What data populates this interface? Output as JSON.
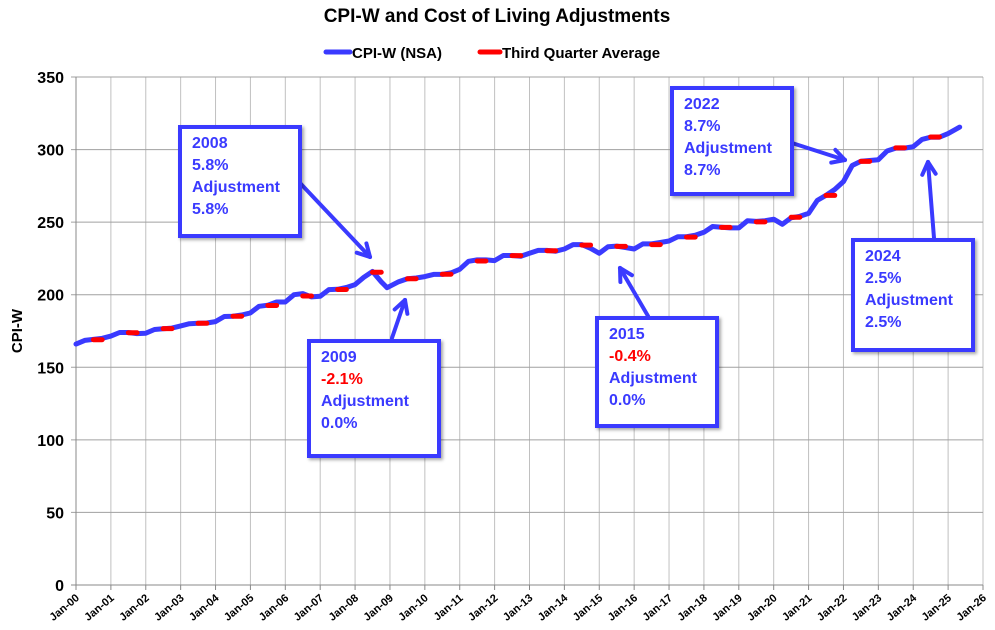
{
  "chart_data": {
    "type": "line",
    "title": "CPI-W and Cost of Living Adjustments",
    "ylabel": "CPI-W",
    "xlabel": "",
    "ylim": [
      0,
      350
    ],
    "yticks": [
      0,
      50,
      100,
      150,
      200,
      250,
      300,
      350
    ],
    "xlim": [
      "2000-01",
      "2026-01"
    ],
    "xtick_labels": [
      "Jan-00",
      "Jan-01",
      "Jan-02",
      "Jan-03",
      "Jan-04",
      "Jan-05",
      "Jan-06",
      "Jan-07",
      "Jan-08",
      "Jan-09",
      "Jan-10",
      "Jan-11",
      "Jan-12",
      "Jan-13",
      "Jan-14",
      "Jan-15",
      "Jan-16",
      "Jan-17",
      "Jan-18",
      "Jan-19",
      "Jan-20",
      "Jan-21",
      "Jan-22",
      "Jan-23",
      "Jan-24",
      "Jan-25",
      "Jan-26"
    ],
    "grid": true,
    "legend_placement": "top",
    "series": [
      {
        "name": "CPI-W (NSA)",
        "color": "#3a3aff",
        "x": [
          "2000-01",
          "2000-04",
          "2000-07",
          "2000-10",
          "2001-01",
          "2001-04",
          "2001-07",
          "2001-10",
          "2002-01",
          "2002-04",
          "2002-07",
          "2002-10",
          "2003-01",
          "2003-04",
          "2003-07",
          "2003-10",
          "2004-01",
          "2004-04",
          "2004-07",
          "2004-10",
          "2005-01",
          "2005-04",
          "2005-07",
          "2005-10",
          "2006-01",
          "2006-04",
          "2006-07",
          "2006-10",
          "2007-01",
          "2007-04",
          "2007-07",
          "2007-10",
          "2008-01",
          "2008-04",
          "2008-07",
          "2008-10",
          "2008-12",
          "2009-04",
          "2009-07",
          "2009-10",
          "2010-01",
          "2010-04",
          "2010-07",
          "2010-10",
          "2011-01",
          "2011-04",
          "2011-07",
          "2011-10",
          "2012-01",
          "2012-04",
          "2012-07",
          "2012-10",
          "2013-01",
          "2013-04",
          "2013-07",
          "2013-10",
          "2014-01",
          "2014-04",
          "2014-07",
          "2014-10",
          "2015-01",
          "2015-04",
          "2015-07",
          "2015-10",
          "2016-01",
          "2016-04",
          "2016-07",
          "2016-10",
          "2017-01",
          "2017-04",
          "2017-07",
          "2017-10",
          "2018-01",
          "2018-04",
          "2018-07",
          "2018-10",
          "2019-01",
          "2019-04",
          "2019-07",
          "2019-10",
          "2020-01",
          "2020-04",
          "2020-07",
          "2020-10",
          "2021-01",
          "2021-04",
          "2021-07",
          "2021-10",
          "2022-01",
          "2022-04",
          "2022-07",
          "2022-10",
          "2023-01",
          "2023-04",
          "2023-07",
          "2023-10",
          "2024-01",
          "2024-04",
          "2024-07",
          "2024-10",
          "2025-01",
          "2025-05"
        ],
        "values": [
          166,
          168.5,
          169.2,
          170,
          171.5,
          174,
          174,
          173.2,
          173.5,
          176,
          176.6,
          177,
          178.5,
          180,
          180.3,
          180.5,
          181.5,
          185,
          185.2,
          186,
          187.5,
          192,
          192.8,
          195,
          195,
          200,
          200.8,
          198.5,
          199,
          203.5,
          203.7,
          205,
          207,
          212,
          216,
          209,
          204.8,
          209,
          211,
          211.5,
          212.5,
          214,
          214,
          215,
          217.5,
          223,
          224,
          224,
          223.5,
          227,
          227,
          226.5,
          228.5,
          230.5,
          230.5,
          230,
          231.5,
          234.5,
          234.5,
          232,
          228.5,
          233,
          233.5,
          232.5,
          231.5,
          235,
          235,
          236,
          237,
          240,
          240,
          241,
          243,
          247,
          246.5,
          246,
          246,
          251,
          250.5,
          251,
          252,
          248.5,
          253,
          254,
          256,
          265,
          268.5,
          272.5,
          278,
          289,
          292,
          292.5,
          293,
          299,
          301,
          301,
          302,
          307,
          308.5,
          308.5,
          311,
          315.5
        ]
      },
      {
        "name": "Third Quarter Average",
        "color": "#ff0000",
        "x": [
          "2000",
          "2001",
          "2002",
          "2003",
          "2004",
          "2005",
          "2006",
          "2007",
          "2008",
          "2009",
          "2010",
          "2011",
          "2012",
          "2013",
          "2014",
          "2015",
          "2016",
          "2017",
          "2018",
          "2019",
          "2020",
          "2021",
          "2022",
          "2023",
          "2024"
        ],
        "values": [
          169.0,
          173.8,
          176.6,
          180.3,
          185.2,
          192.6,
          199.1,
          203.6,
          215.5,
          211.0,
          214.1,
          223.2,
          226.9,
          230.3,
          234.2,
          233.3,
          234.5,
          239.7,
          246.4,
          250.2,
          253.4,
          268.4,
          291.9,
          301.2,
          308.7
        ]
      }
    ],
    "annotations": [
      {
        "year": "2008",
        "cpi_change": "5.8%",
        "label": "Adjustment",
        "adjustment": "5.8%",
        "negative": false
      },
      {
        "year": "2009",
        "cpi_change": "-2.1%",
        "label": "Adjustment",
        "adjustment": "0.0%",
        "negative": true
      },
      {
        "year": "2015",
        "cpi_change": "-0.4%",
        "label": "Adjustment",
        "adjustment": "0.0%",
        "negative": true
      },
      {
        "year": "2022",
        "cpi_change": "8.7%",
        "label": "Adjustment",
        "adjustment": "8.7%",
        "negative": false
      },
      {
        "year": "2024",
        "cpi_change": "2.5%",
        "label": "Adjustment",
        "adjustment": "2.5%",
        "negative": false
      }
    ]
  }
}
